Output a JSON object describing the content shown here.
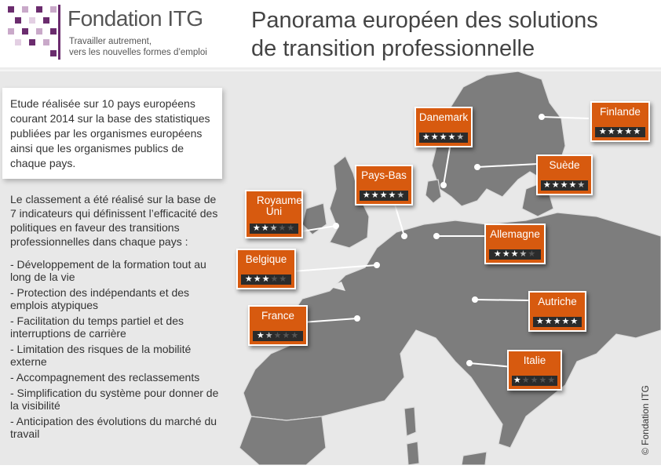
{
  "brand": {
    "name": "Fondation ITG",
    "tagline_line1": "Travailler autrement,",
    "tagline_line2": "vers les nouvelles formes d’emploi"
  },
  "title": {
    "line1": "Panorama européen des solutions",
    "line2": "de transition professionnelle"
  },
  "intro": "Etude réalisée sur 10 pays européens courant 2014 sur la base des statistiques publiées par les organismes européens ainsi que les organismes publics de chaque pays.",
  "methodology": "Le classement a été réalisé sur la base de 7 indicateurs qui définissent l’efficacité des politiques en faveur des transitions professionnelles dans chaque pays :",
  "indicators": [
    "- Développement de la formation tout au long de la vie",
    "- Protection des indépendants et des emplois atypiques",
    "- Facilitation du temps partiel et des interruptions de carrière",
    "- Limitation des risques de la mobilité externe",
    "- Accompagnement des reclassements",
    "- Simplification du système pour donner de la visibilité",
    "- Anticipation des évolutions du marché du travail"
  ],
  "countries": [
    {
      "name": "Danemark",
      "rating": 4.5
    },
    {
      "name": "Finlande",
      "rating": 5
    },
    {
      "name": "Pays-Bas",
      "rating": 4.5
    },
    {
      "name": "Suède",
      "rating": 4.5
    },
    {
      "name": "Royaume Uni",
      "rating": 2.5
    },
    {
      "name": "Allemagne",
      "rating": 3.5
    },
    {
      "name": "Belgique",
      "rating": 3
    },
    {
      "name": "Autriche",
      "rating": 5
    },
    {
      "name": "France",
      "rating": 1.5
    },
    {
      "name": "Italie",
      "rating": 1
    }
  ],
  "copyright": "© Fondation ITG",
  "colors": {
    "tag_orange": "#d75a0f",
    "brand_purple": "#6b2c6e",
    "map_land": "#7d7d7d",
    "background": "#e8e8e8"
  }
}
